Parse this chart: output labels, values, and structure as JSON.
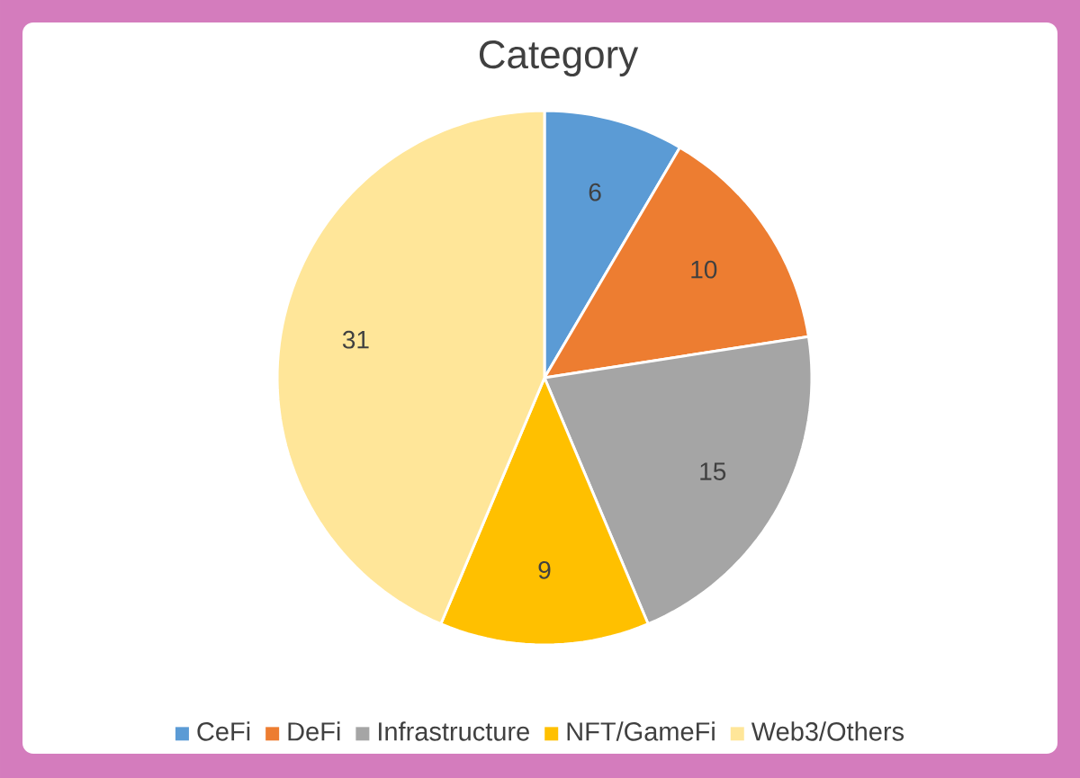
{
  "chart_data": {
    "type": "pie",
    "title": "Category",
    "categories": [
      "CeFi",
      "DeFi",
      "Infrastructure",
      "NFT/GameFi",
      "Web3/Others"
    ],
    "values": [
      6,
      10,
      15,
      9,
      31
    ],
    "colors": [
      "#5b9bd5",
      "#ed7d31",
      "#a5a5a5",
      "#ffc000",
      "#ffe699"
    ],
    "data_labels": true,
    "legend": "bottom"
  }
}
